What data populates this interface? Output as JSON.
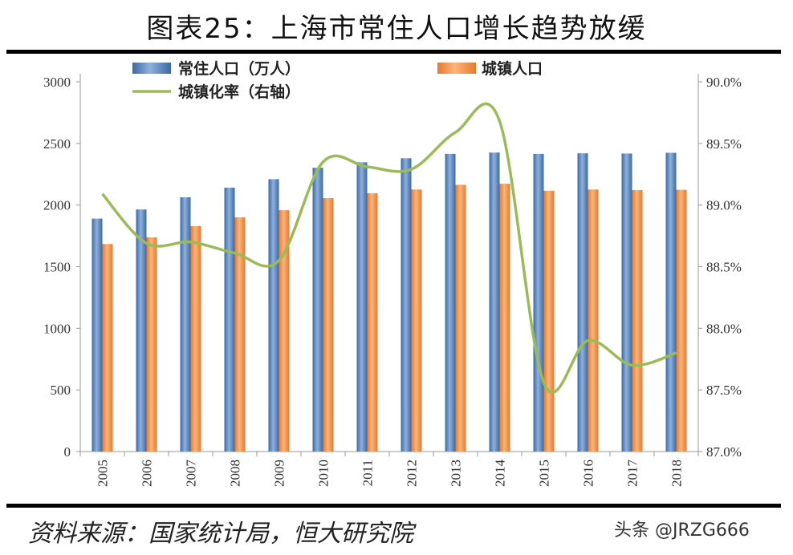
{
  "title": "图表25：上海市常住人口增长趋势放缓",
  "source": "资料来源：国家统计局，恒大研究院",
  "watermark": "头条 @JRZG666",
  "chart_data": {
    "type": "bar+line",
    "categories": [
      "2005",
      "2006",
      "2007",
      "2008",
      "2009",
      "2010",
      "2011",
      "2012",
      "2013",
      "2014",
      "2015",
      "2016",
      "2017",
      "2018"
    ],
    "series": [
      {
        "name": "常住人口（万人）",
        "type": "bar",
        "axis": "left",
        "color": "#4f81bd",
        "values": [
          1890,
          1964,
          2063,
          2141,
          2210,
          2303,
          2347,
          2380,
          2415,
          2426,
          2415,
          2420,
          2418,
          2424
        ]
      },
      {
        "name": "城镇人口",
        "type": "bar",
        "axis": "left",
        "color": "#f79646",
        "values": [
          1684,
          1738,
          1829,
          1900,
          1958,
          2056,
          2096,
          2126,
          2164,
          2173,
          2116,
          2126,
          2121,
          2124
        ]
      },
      {
        "name": "城镇化率（右轴）",
        "type": "line",
        "axis": "right",
        "color": "#9bbb59",
        "values": [
          89.09,
          88.69,
          88.7,
          88.61,
          88.55,
          89.35,
          89.31,
          89.29,
          89.59,
          89.68,
          87.56,
          87.9,
          87.7,
          87.8
        ]
      }
    ],
    "left_axis": {
      "min": 0,
      "max": 3000,
      "ticks": [
        "0",
        "500",
        "1000",
        "1500",
        "2000",
        "2500",
        "3000"
      ]
    },
    "right_axis": {
      "min": 87.0,
      "max": 90.0,
      "ticks": [
        "87.0%",
        "87.5%",
        "88.0%",
        "88.5%",
        "89.0%",
        "89.5%",
        "90.0%"
      ]
    },
    "legend": "top",
    "grid": false
  }
}
